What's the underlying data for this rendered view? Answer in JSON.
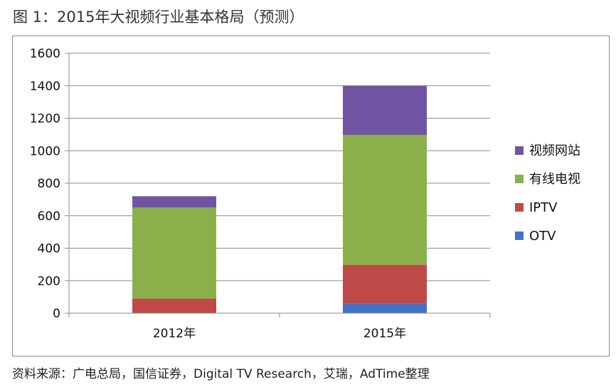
{
  "figure": {
    "title": "图 1：2015年大视频行业基本格局（预测）",
    "source": "资料来源：广电总局，国信证券，Digital TV Research，艾瑞，AdTime整理"
  },
  "chart_data": {
    "type": "bar",
    "stacked": true,
    "title": "图 1：2015年大视频行业基本格局（预测）",
    "categories": [
      "2012年",
      "2015年"
    ],
    "series": [
      {
        "name": "OTV",
        "color": "#4472C4",
        "values": [
          2,
          60
        ]
      },
      {
        "name": "IPTV",
        "color": "#BE4B48",
        "values": [
          88,
          237
        ]
      },
      {
        "name": "有线电视",
        "color": "#8BB04B",
        "values": [
          560,
          800
        ]
      },
      {
        "name": "视频网站",
        "color": "#7054A1",
        "values": [
          70,
          303
        ]
      }
    ],
    "ylim": [
      0,
      1600
    ],
    "yticks": [
      "0",
      "200",
      "400",
      "600",
      "800",
      "1000",
      "1200",
      "1400",
      "1600"
    ],
    "grid": true,
    "legend_position": "right",
    "legend_order": [
      "视频网站",
      "有线电视",
      "IPTV",
      "OTV"
    ],
    "xlabel": "",
    "ylabel": ""
  }
}
